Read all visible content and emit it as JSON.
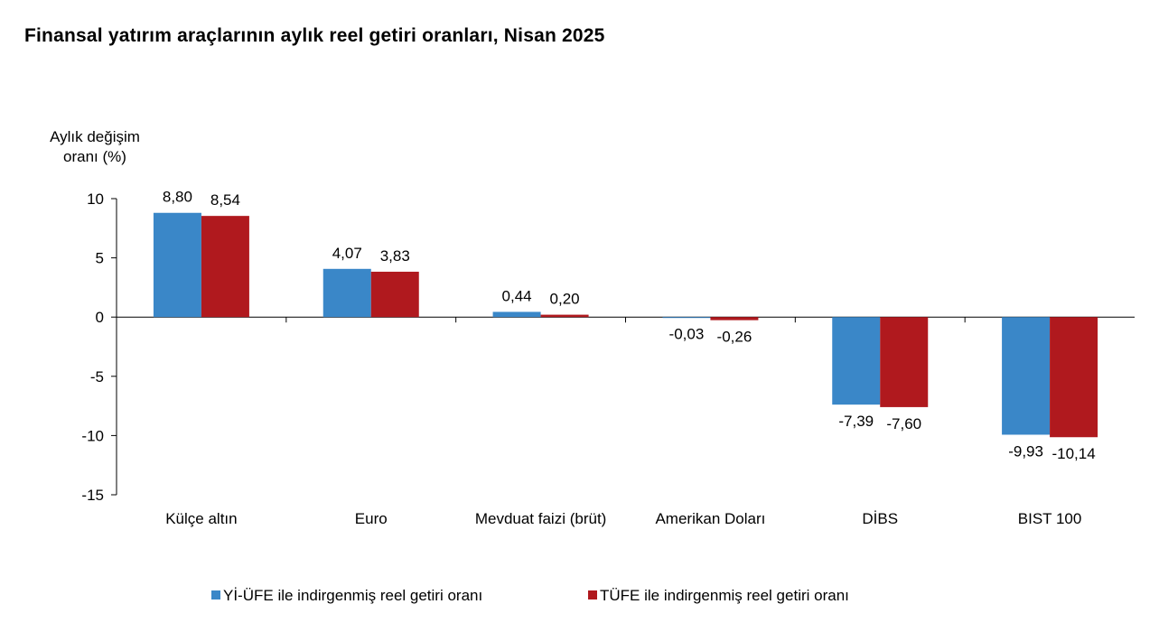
{
  "chart_data": {
    "type": "bar",
    "title": "Finansal yatırım araçlarının aylık reel getiri oranları, Nisan 2025",
    "ylabel_lines": [
      "Aylık değişim",
      "oranı (%)"
    ],
    "xlabel": "",
    "categories": [
      "Külçe altın",
      "Euro",
      "Mevduat faizi (brüt)",
      "Amerikan Doları",
      "DİBS",
      "BIST 100"
    ],
    "series": [
      {
        "name": "Yİ-ÜFE ile indirgenmiş reel getiri oranı",
        "color": "#3A87C8",
        "values": [
          8.8,
          4.07,
          0.44,
          -0.03,
          -7.39,
          -9.93
        ],
        "labels": [
          "8,80",
          "4,07",
          "0,44",
          "-0,03",
          "-7,39",
          "-9,93"
        ]
      },
      {
        "name": "TÜFE ile indirgenmiş reel getiri oranı",
        "color": "#B0191E",
        "values": [
          8.54,
          3.83,
          0.2,
          -0.26,
          -7.6,
          -10.14
        ],
        "labels": [
          "8,54",
          "3,83",
          "0,20",
          "-0,26",
          "-7,60",
          "-10,14"
        ]
      }
    ],
    "ylim": [
      -15,
      10
    ],
    "yticks": [
      10,
      5,
      0,
      -5,
      -10,
      -15
    ],
    "ytick_labels": [
      "10",
      "5",
      "0",
      "-5",
      "-10",
      "-15"
    ],
    "grid": false,
    "legend_position": "bottom"
  }
}
